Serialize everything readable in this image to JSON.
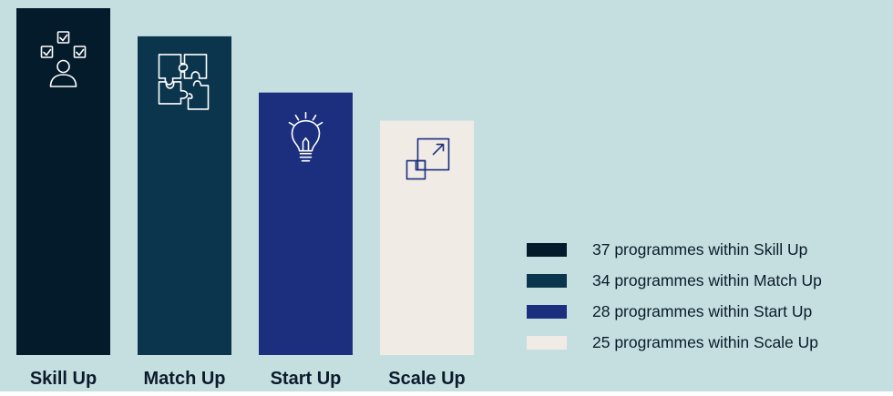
{
  "colors": {
    "background": "#c5dfe0",
    "skill_up": "#041b2c",
    "match_up": "#0b354d",
    "start_up": "#1c2f7e",
    "scale_up": "#f1ebe6",
    "icon_on_dark": "#ffffff",
    "icon_on_light": "#1c2f7e"
  },
  "icons": [
    "checklist-person-icon",
    "puzzle-icon",
    "lightbulb-icon",
    "scale-arrow-icon"
  ],
  "chart_data": {
    "type": "bar",
    "categories": [
      "Skill Up",
      "Match Up",
      "Start Up",
      "Scale Up"
    ],
    "values": [
      37,
      34,
      28,
      25
    ],
    "ylim": [
      0,
      37
    ],
    "grid": false,
    "legend_position": "bottom-right",
    "legend": [
      "37 programmes within Skill Up",
      "34 programmes within Match Up",
      "28 programmes within Start Up",
      "25 programmes within Scale Up"
    ]
  }
}
